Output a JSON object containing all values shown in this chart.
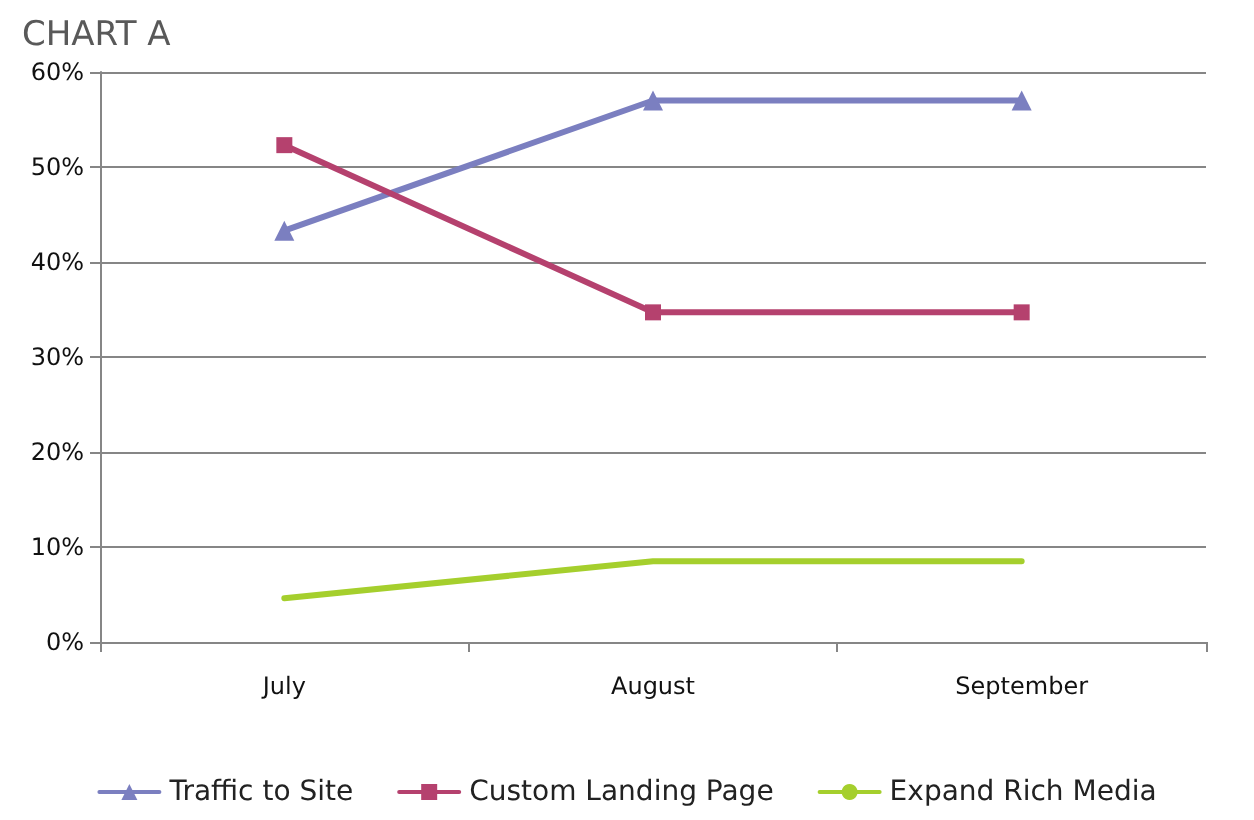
{
  "chart_data": {
    "type": "line",
    "title": "CHART A",
    "categories": [
      "July",
      "August",
      "September"
    ],
    "series": [
      {
        "name": "Traffic to Site",
        "color": "#7b7fc0",
        "marker": "triangle",
        "values": [
          43.3,
          57,
          57
        ]
      },
      {
        "name": "Custom Landing Page",
        "color": "#b5416e",
        "marker": "square",
        "values": [
          52.3,
          34.7,
          34.7
        ]
      },
      {
        "name": "Expand Rich Media",
        "color": "#a5cf2d",
        "marker": "none",
        "values": [
          4.6,
          8.5,
          8.5
        ]
      }
    ],
    "ylim": [
      0,
      60
    ],
    "yticks": [
      {
        "value": 0,
        "label": "0%"
      },
      {
        "value": 10,
        "label": "10%"
      },
      {
        "value": 20,
        "label": "20%"
      },
      {
        "value": 30,
        "label": "30%"
      },
      {
        "value": 40,
        "label": "40%"
      },
      {
        "value": 50,
        "label": "50%"
      },
      {
        "value": 60,
        "label": "60%"
      }
    ],
    "grid": "y",
    "legend": "bottom"
  }
}
